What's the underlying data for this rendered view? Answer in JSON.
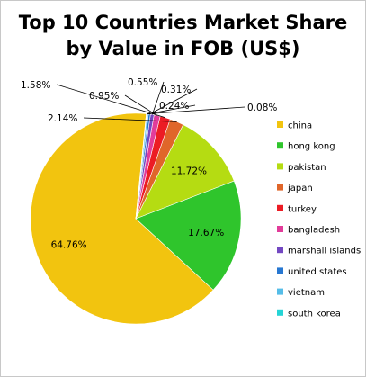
{
  "chart_data": {
    "type": "pie",
    "title_lines": [
      "Top 10 Countries Market Share",
      "by Value in FOB (US$)"
    ],
    "slices": [
      {
        "label": "china",
        "value": 64.76,
        "text": "64.76%",
        "color": "#f2c40f"
      },
      {
        "label": "hong kong",
        "value": 17.67,
        "text": "17.67%",
        "color": "#2fc52c"
      },
      {
        "label": "pakistan",
        "value": 11.72,
        "text": "11.72%",
        "color": "#b5dc12"
      },
      {
        "label": "japan",
        "value": 2.14,
        "text": "2.14%",
        "color": "#e0662a"
      },
      {
        "label": "turkey",
        "value": 1.58,
        "text": "1.58%",
        "color": "#ec1c24"
      },
      {
        "label": "bangladesh",
        "value": 0.95,
        "text": "0.95%",
        "color": "#e23c9a"
      },
      {
        "label": "marshall islands",
        "value": 0.55,
        "text": "0.55%",
        "color": "#7348c2"
      },
      {
        "label": "united states",
        "value": 0.31,
        "text": "0.31%",
        "color": "#2777d1"
      },
      {
        "label": "vietnam",
        "value": 0.24,
        "text": "0.24%",
        "color": "#55bde8"
      },
      {
        "label": "south korea",
        "value": 0.08,
        "text": "0.08%",
        "color": "#25d4d6"
      }
    ],
    "legend_position": "right"
  }
}
